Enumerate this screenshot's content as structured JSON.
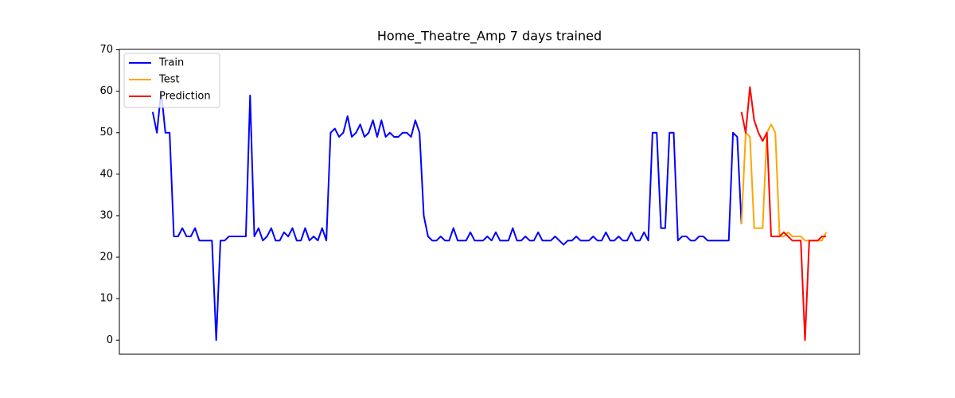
{
  "chart_data": {
    "type": "line",
    "title": "Home_Theatre_Amp 7 days trained",
    "ylim": [
      -3.4,
      70.1
    ],
    "yticks": [
      0,
      10,
      20,
      30,
      40,
      50,
      60,
      70
    ],
    "grid": false,
    "legend": "upper left",
    "series": [
      {
        "name": "Train",
        "color": "#0000ff",
        "values": [
          55,
          50,
          60,
          50,
          50,
          25,
          25,
          27,
          25,
          25,
          27,
          24,
          24,
          24,
          24,
          0,
          24,
          24,
          25,
          25,
          25,
          25,
          25,
          59,
          25,
          27,
          24,
          25,
          27,
          24,
          24,
          26,
          25,
          27,
          24,
          24,
          27,
          24,
          25,
          24,
          27,
          24,
          50,
          51,
          49,
          50,
          54,
          49,
          50,
          52,
          49,
          50,
          53,
          49,
          53,
          49,
          50,
          49,
          49,
          50,
          50,
          49,
          53,
          50,
          30,
          25,
          24,
          24,
          25,
          24,
          24,
          27,
          24,
          24,
          24,
          26,
          24,
          24,
          24,
          25,
          24,
          26,
          24,
          24,
          24,
          27,
          24,
          24,
          25,
          24,
          24,
          26,
          24,
          24,
          24,
          25,
          24,
          23,
          24,
          24,
          25,
          24,
          24,
          24,
          25,
          24,
          24,
          26,
          24,
          24,
          25,
          24,
          24,
          26,
          24,
          24,
          26,
          24,
          50,
          50,
          27,
          27,
          50,
          50,
          24,
          25,
          25,
          24,
          24,
          25,
          25,
          24,
          24,
          24,
          24,
          24,
          24,
          50,
          49,
          28,
          null,
          null,
          null,
          null,
          null,
          null,
          null,
          null,
          null,
          null,
          null,
          null,
          null,
          null,
          null,
          null,
          null,
          null,
          null,
          null
        ]
      },
      {
        "name": "Test",
        "color": "#ffa500",
        "values": [
          null,
          null,
          null,
          null,
          null,
          null,
          null,
          null,
          null,
          null,
          null,
          null,
          null,
          null,
          null,
          null,
          null,
          null,
          null,
          null,
          null,
          null,
          null,
          null,
          null,
          null,
          null,
          null,
          null,
          null,
          null,
          null,
          null,
          null,
          null,
          null,
          null,
          null,
          null,
          null,
          null,
          null,
          null,
          null,
          null,
          null,
          null,
          null,
          null,
          null,
          null,
          null,
          null,
          null,
          null,
          null,
          null,
          null,
          null,
          null,
          null,
          null,
          null,
          null,
          null,
          null,
          null,
          null,
          null,
          null,
          null,
          null,
          null,
          null,
          null,
          null,
          null,
          null,
          null,
          null,
          null,
          null,
          null,
          null,
          null,
          null,
          null,
          null,
          null,
          null,
          null,
          null,
          null,
          null,
          null,
          null,
          null,
          null,
          null,
          null,
          null,
          null,
          null,
          null,
          null,
          null,
          null,
          null,
          null,
          null,
          null,
          null,
          null,
          null,
          null,
          null,
          null,
          null,
          null,
          null,
          null,
          null,
          null,
          null,
          null,
          null,
          null,
          null,
          null,
          null,
          null,
          null,
          null,
          null,
          null,
          null,
          null,
          null,
          null,
          28,
          50,
          49,
          27,
          27,
          27,
          50,
          52,
          50,
          25,
          25,
          26,
          25,
          25,
          25,
          24,
          24,
          24,
          24,
          24,
          26
        ]
      },
      {
        "name": "Prediction",
        "color": "#ff0000",
        "values": [
          null,
          null,
          null,
          null,
          null,
          null,
          null,
          null,
          null,
          null,
          null,
          null,
          null,
          null,
          null,
          null,
          null,
          null,
          null,
          null,
          null,
          null,
          null,
          null,
          null,
          null,
          null,
          null,
          null,
          null,
          null,
          null,
          null,
          null,
          null,
          null,
          null,
          null,
          null,
          null,
          null,
          null,
          null,
          null,
          null,
          null,
          null,
          null,
          null,
          null,
          null,
          null,
          null,
          null,
          null,
          null,
          null,
          null,
          null,
          null,
          null,
          null,
          null,
          null,
          null,
          null,
          null,
          null,
          null,
          null,
          null,
          null,
          null,
          null,
          null,
          null,
          null,
          null,
          null,
          null,
          null,
          null,
          null,
          null,
          null,
          null,
          null,
          null,
          null,
          null,
          null,
          null,
          null,
          null,
          null,
          null,
          null,
          null,
          null,
          null,
          null,
          null,
          null,
          null,
          null,
          null,
          null,
          null,
          null,
          null,
          null,
          null,
          null,
          null,
          null,
          null,
          null,
          null,
          null,
          null,
          null,
          null,
          null,
          null,
          null,
          null,
          null,
          null,
          null,
          null,
          null,
          null,
          null,
          null,
          null,
          null,
          null,
          null,
          null,
          55,
          50,
          61,
          53,
          50,
          48,
          50,
          25,
          25,
          25,
          26,
          25,
          24,
          24,
          24,
          0,
          24,
          24,
          24,
          25,
          25
        ]
      }
    ]
  }
}
